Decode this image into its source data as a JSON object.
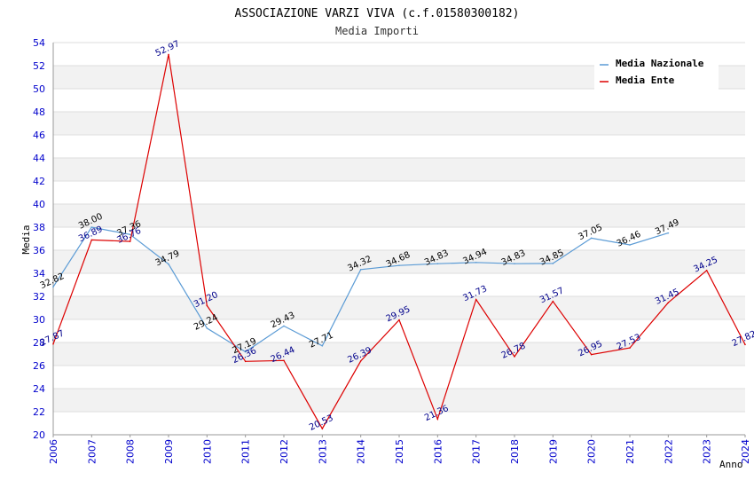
{
  "chart_data": {
    "type": "line",
    "title": "ASSOCIAZIONE VARZI VIVA (c.f.01580300182)",
    "subtitle": "Media Importi",
    "xlabel": "Anno",
    "ylabel": "Media",
    "ylim": [
      20,
      54
    ],
    "ytick_step": 2,
    "grid": true,
    "legend_position": "top-right",
    "x": [
      "2006",
      "2007",
      "2008",
      "2009",
      "2010",
      "2011",
      "2012",
      "2013",
      "2014",
      "2015",
      "2016",
      "2017",
      "2018",
      "2019",
      "2020",
      "2021",
      "2022",
      "2023",
      "2024"
    ],
    "series": [
      {
        "name": "Media Nazionale",
        "color": "#5b9bd5",
        "values": [
          32.82,
          38.0,
          37.36,
          34.79,
          29.24,
          27.19,
          29.43,
          27.71,
          34.32,
          34.68,
          34.83,
          34.94,
          34.83,
          34.85,
          37.05,
          36.46,
          37.49,
          null,
          null
        ],
        "labels": [
          "32.82",
          "38.00",
          "37.36",
          "34.79",
          "29.24",
          "27.19",
          "29.43",
          "27.71",
          "34.32",
          "34.68",
          "34.83",
          "34.94",
          "34.83",
          "34.85",
          "37.05",
          "36.46",
          "37.49",
          "",
          ""
        ]
      },
      {
        "name": "Media Ente",
        "color": "#dd0000",
        "values": [
          27.87,
          36.89,
          36.76,
          52.97,
          31.2,
          26.36,
          26.44,
          20.53,
          26.39,
          29.95,
          21.36,
          31.73,
          26.78,
          31.57,
          26.95,
          27.53,
          31.45,
          34.25,
          27.82
        ],
        "labels": [
          "27.87",
          "36.89",
          "36.76",
          "52.97",
          "31.20",
          "26.36",
          "26.44",
          "20.53",
          "26.39",
          "29.95",
          "21.36",
          "31.73",
          "26.78",
          "31.57",
          "26.95",
          "27.53",
          "31.45",
          "34.25",
          "27.82"
        ]
      }
    ]
  }
}
